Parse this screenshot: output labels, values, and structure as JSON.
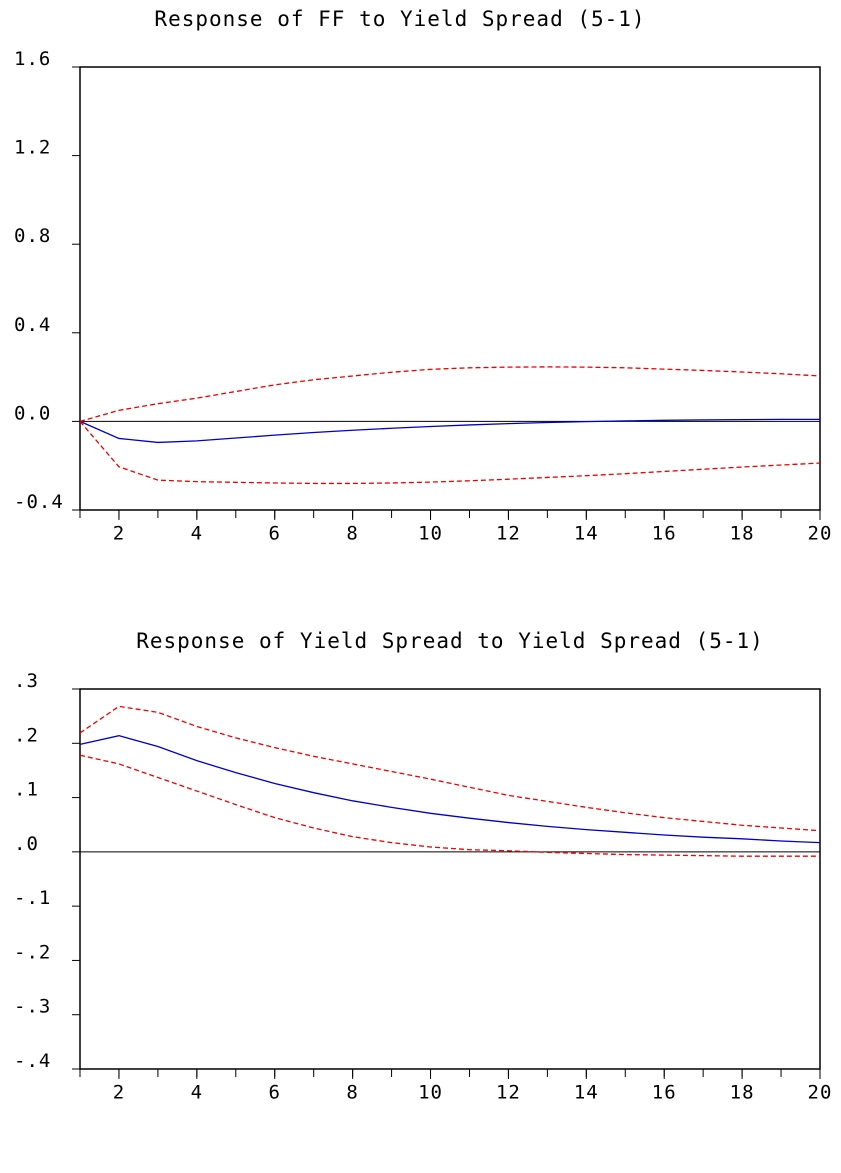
{
  "chart_data": [
    {
      "type": "line",
      "title": "Response of FF to Yield Spread (5-1)",
      "x": [
        1,
        2,
        3,
        4,
        5,
        6,
        7,
        8,
        9,
        10,
        11,
        12,
        13,
        14,
        15,
        16,
        17,
        18,
        19,
        20
      ],
      "series": [
        {
          "color": "#0000cc",
          "dashed": false,
          "values": [
            0,
            -0.077,
            -0.095,
            -0.088,
            -0.075,
            -0.062,
            -0.05,
            -0.04,
            -0.031,
            -0.023,
            -0.016,
            -0.01,
            -0.005,
            -0.001,
            0.002,
            0.005,
            0.007,
            0.008,
            0.009,
            0.009
          ]
        },
        {
          "color": "#ee0000",
          "dashed": true,
          "values": [
            0,
            0.05,
            0.08,
            0.105,
            0.135,
            0.165,
            0.188,
            0.205,
            0.222,
            0.235,
            0.242,
            0.245,
            0.246,
            0.245,
            0.242,
            0.236,
            0.23,
            0.223,
            0.215,
            0.205
          ]
        },
        {
          "color": "#ee0000",
          "dashed": true,
          "values": [
            0,
            -0.205,
            -0.265,
            -0.272,
            -0.275,
            -0.278,
            -0.28,
            -0.28,
            -0.278,
            -0.274,
            -0.268,
            -0.261,
            -0.253,
            -0.245,
            -0.236,
            -0.226,
            -0.216,
            -0.206,
            -0.197,
            -0.188
          ]
        }
      ],
      "xlim": [
        1,
        20
      ],
      "xticks": [
        2,
        4,
        6,
        8,
        10,
        12,
        14,
        16,
        18,
        20
      ],
      "ylim": [
        -0.4,
        1.6
      ],
      "yticks": [
        -0.4,
        {
          "value": 0,
          "label": "0.0"
        },
        0.4,
        0.8,
        1.2,
        1.6
      ],
      "zero_line": true
    },
    {
      "type": "line",
      "title": "Response of Yield Spread to Yield Spread (5-1)",
      "x": [
        1,
        2,
        3,
        4,
        5,
        6,
        7,
        8,
        9,
        10,
        11,
        12,
        13,
        14,
        15,
        16,
        17,
        18,
        19,
        20
      ],
      "series": [
        {
          "color": "#0000cc",
          "dashed": false,
          "values": [
            0.198,
            0.214,
            0.194,
            0.168,
            0.146,
            0.126,
            0.109,
            0.094,
            0.082,
            0.071,
            0.062,
            0.054,
            0.047,
            0.041,
            0.036,
            0.031,
            0.027,
            0.024,
            0.02,
            0.017
          ]
        },
        {
          "color": "#ee0000",
          "dashed": true,
          "values": [
            0.219,
            0.268,
            0.257,
            0.231,
            0.21,
            0.192,
            0.176,
            0.162,
            0.148,
            0.134,
            0.119,
            0.104,
            0.093,
            0.082,
            0.072,
            0.063,
            0.056,
            0.049,
            0.044,
            0.039
          ]
        },
        {
          "color": "#ee0000",
          "dashed": true,
          "values": [
            0.178,
            0.162,
            0.137,
            0.112,
            0.087,
            0.063,
            0.044,
            0.028,
            0.017,
            0.009,
            0.004,
            0.002,
            -0.001,
            -0.003,
            -0.005,
            -0.006,
            -0.007,
            -0.008,
            -0.008,
            -0.008
          ]
        }
      ],
      "xlim": [
        1,
        20
      ],
      "xticks": [
        2,
        4,
        6,
        8,
        10,
        12,
        14,
        16,
        18,
        20
      ],
      "ylim": [
        -0.4,
        0.3
      ],
      "yticks": [
        {
          "value": -0.4,
          "label": "-.4"
        },
        {
          "value": -0.3,
          "label": "-.3"
        },
        {
          "value": -0.2,
          "label": "-.2"
        },
        {
          "value": -0.1,
          "label": "-.1"
        },
        {
          "value": 0,
          "label": ".0"
        },
        {
          "value": 0.1,
          "label": ".1"
        },
        {
          "value": 0.2,
          "label": ".2"
        },
        {
          "value": 0.3,
          "label": ".3"
        }
      ],
      "zero_line": true
    }
  ]
}
